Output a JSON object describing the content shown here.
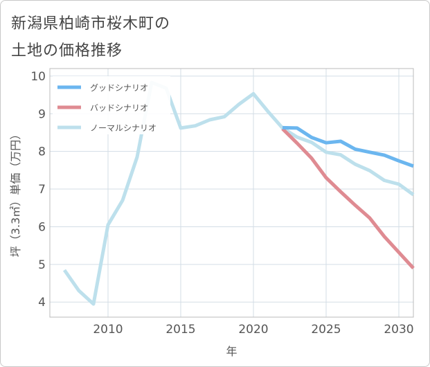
{
  "title_lines": [
    "新潟県柏崎市桜木町の",
    "土地の価格推移"
  ],
  "chart_data": {
    "type": "line",
    "xlabel": "年",
    "ylabel": "坪（3.3㎡）単価（万円）",
    "xlim": [
      2006,
      2031
    ],
    "ylim": [
      3.6,
      10.2
    ],
    "xticks": [
      2010,
      2015,
      2020,
      2025,
      2030
    ],
    "yticks": [
      4,
      5,
      6,
      7,
      8,
      9,
      10
    ],
    "grid": true,
    "legend_position": "top-left",
    "series": [
      {
        "name": "グッドシナリオ",
        "color": "#6bb6ef",
        "points": [
          [
            2022,
            8.63
          ],
          [
            2023,
            8.62
          ],
          [
            2024,
            8.37
          ],
          [
            2025,
            8.23
          ],
          [
            2026,
            8.27
          ],
          [
            2027,
            8.06
          ],
          [
            2028,
            7.98
          ],
          [
            2029,
            7.9
          ],
          [
            2030,
            7.75
          ],
          [
            2031,
            7.61
          ]
        ]
      },
      {
        "name": "バッドシナリオ",
        "color": "#df8b92",
        "points": [
          [
            2022,
            8.6
          ],
          [
            2023,
            8.22
          ],
          [
            2024,
            7.82
          ],
          [
            2025,
            7.3
          ],
          [
            2026,
            6.93
          ],
          [
            2027,
            6.57
          ],
          [
            2028,
            6.23
          ],
          [
            2029,
            5.74
          ],
          [
            2030,
            5.32
          ],
          [
            2031,
            4.9
          ]
        ]
      },
      {
        "name": "ノーマルシナリオ",
        "color": "#bde0ec",
        "points": [
          [
            2007,
            4.85
          ],
          [
            2008,
            4.3
          ],
          [
            2009,
            3.95
          ],
          [
            2010,
            6.05
          ],
          [
            2011,
            6.7
          ],
          [
            2012,
            7.85
          ],
          [
            2013,
            9.83
          ],
          [
            2014,
            9.68
          ],
          [
            2015,
            8.62
          ],
          [
            2016,
            8.68
          ],
          [
            2017,
            8.84
          ],
          [
            2018,
            8.92
          ],
          [
            2019,
            9.25
          ],
          [
            2020,
            9.53
          ],
          [
            2021,
            9.06
          ],
          [
            2022,
            8.62
          ],
          [
            2023,
            8.38
          ],
          [
            2024,
            8.24
          ],
          [
            2025,
            7.98
          ],
          [
            2026,
            7.91
          ],
          [
            2027,
            7.66
          ],
          [
            2028,
            7.49
          ],
          [
            2029,
            7.23
          ],
          [
            2030,
            7.13
          ],
          [
            2031,
            6.85
          ]
        ]
      }
    ]
  }
}
